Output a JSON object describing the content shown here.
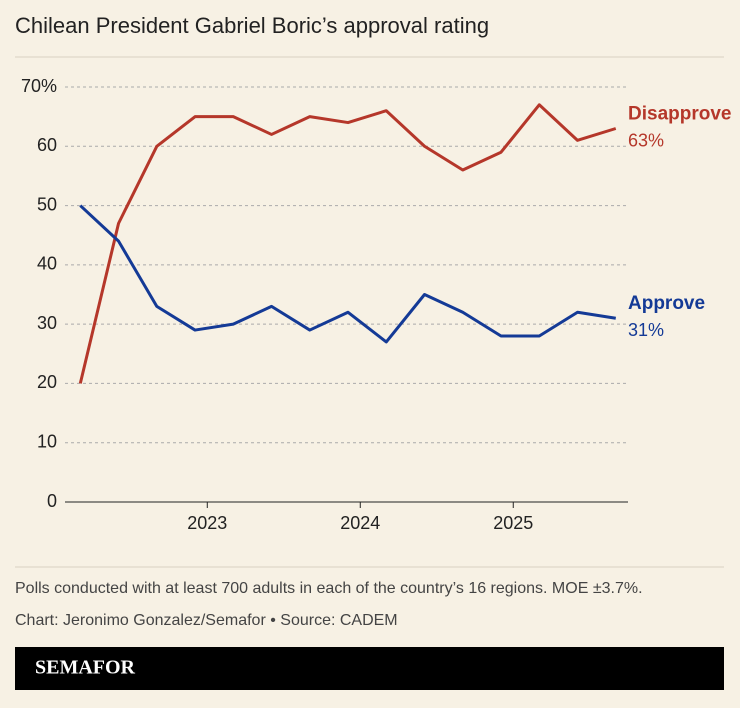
{
  "chart_data": {
    "type": "line",
    "title": "Chilean President Gabriel Boric’s approval rating",
    "x": [
      2022.17,
      2022.42,
      2022.67,
      2022.92,
      2023.17,
      2023.42,
      2023.67,
      2023.92,
      2024.17,
      2024.42,
      2024.67,
      2024.92,
      2025.17,
      2025.42,
      2025.67
    ],
    "xlim": [
      2022.07,
      2025.75
    ],
    "xticks": [
      2023,
      2024,
      2025
    ],
    "ylim": [
      0,
      70
    ],
    "yticks": [
      0,
      10,
      20,
      30,
      40,
      50,
      60,
      {
        "value": 70,
        "label": "70%"
      }
    ],
    "grid": true,
    "series": [
      {
        "name": "Disapprove",
        "color": "#b5372a",
        "values": [
          20,
          47,
          60,
          65,
          65,
          62,
          65,
          64,
          66,
          60,
          56,
          59,
          67,
          61,
          63
        ],
        "value_labels": [
          null,
          null,
          null,
          null,
          null,
          null,
          null,
          null,
          null,
          null,
          null,
          null,
          null,
          null,
          "63%"
        ]
      },
      {
        "name": "Approve",
        "color": "#143a96",
        "values": [
          50,
          44,
          33,
          29,
          30,
          33,
          29,
          32,
          27,
          35,
          32,
          28,
          28,
          32,
          31
        ],
        "value_labels": [
          null,
          null,
          null,
          null,
          null,
          null,
          null,
          null,
          null,
          null,
          null,
          null,
          null,
          null,
          "31%"
        ]
      }
    ],
    "note": "Polls conducted with at least 700 adults in each of the country’s 16 regions. MOE ±3.7%.",
    "credit": "Chart: Jeronimo Gonzalez/Semafor • Source: CADEM",
    "brand": "SEMAFOR"
  }
}
